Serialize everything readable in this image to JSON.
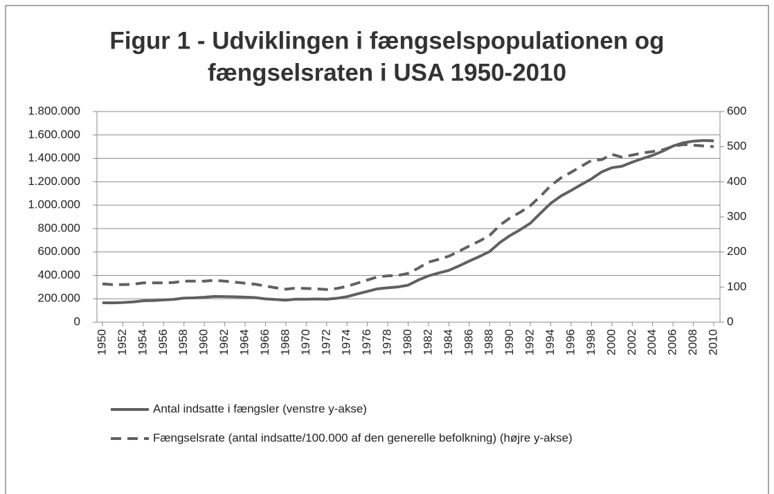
{
  "chart_data": {
    "type": "line",
    "title": [
      "Figur 1 - Udviklingen i fængselspopulationen og",
      "fængselsraten i USA 1950-2010"
    ],
    "x": [
      1950,
      1951,
      1952,
      1953,
      1954,
      1955,
      1956,
      1957,
      1958,
      1959,
      1960,
      1961,
      1962,
      1963,
      1964,
      1965,
      1966,
      1967,
      1968,
      1969,
      1970,
      1971,
      1972,
      1973,
      1974,
      1975,
      1976,
      1977,
      1978,
      1979,
      1980,
      1981,
      1982,
      1983,
      1984,
      1985,
      1986,
      1987,
      1988,
      1989,
      1990,
      1991,
      1992,
      1993,
      1994,
      1995,
      1996,
      1997,
      1998,
      1999,
      2000,
      2001,
      2002,
      2003,
      2004,
      2005,
      2006,
      2007,
      2008,
      2009,
      2010
    ],
    "xlim": [
      1950,
      2010
    ],
    "xticks": [
      1950,
      1952,
      1954,
      1956,
      1958,
      1960,
      1962,
      1964,
      1966,
      1968,
      1970,
      1972,
      1974,
      1976,
      1978,
      1980,
      1982,
      1984,
      1986,
      1988,
      1990,
      1992,
      1994,
      1996,
      1998,
      2000,
      2002,
      2004,
      2006,
      2008,
      2010
    ],
    "series": [
      {
        "name": "Antal indsatte i fængsler (venstre y-akse)",
        "color": "#606060",
        "dash": false,
        "axis": "y",
        "values": [
          166000,
          165000,
          168000,
          173000,
          183000,
          185000,
          190000,
          195000,
          206000,
          208000,
          213000,
          220000,
          218000,
          217000,
          214000,
          210000,
          199000,
          194000,
          188000,
          197000,
          196000,
          198000,
          196000,
          204000,
          218000,
          241000,
          263000,
          285000,
          294000,
          301000,
          316000,
          360000,
          396000,
          420000,
          443000,
          481000,
          522000,
          561000,
          604000,
          680000,
          740000,
          790000,
          846000,
          932000,
          1016000,
          1078000,
          1126000,
          1176000,
          1225000,
          1284000,
          1320000,
          1333000,
          1368000,
          1398000,
          1426000,
          1462000,
          1505000,
          1533000,
          1547000,
          1553000,
          1550000
        ]
      },
      {
        "name": "Fængselsrate (antal indsatte/100.000 af den generelle befolkning) (højre y-akse)",
        "color": "#606060",
        "dash": true,
        "axis": "y2",
        "values": [
          109,
          107,
          107,
          108,
          112,
          112,
          112,
          113,
          117,
          117,
          117,
          119,
          117,
          114,
          111,
          108,
          103,
          98,
          94,
          97,
          96,
          95,
          93,
          96,
          102,
          111,
          120,
          129,
          132,
          133,
          139,
          154,
          171,
          179,
          188,
          202,
          217,
          231,
          247,
          276,
          297,
          313,
          332,
          359,
          389,
          411,
          427,
          444,
          461,
          463,
          478,
          470,
          476,
          482,
          486,
          491,
          501,
          506,
          504,
          502,
          500
        ]
      }
    ],
    "ylim": [
      0,
      1800000
    ],
    "yticks": [
      0,
      {
        "value": 200000,
        "label": "200.000"
      },
      {
        "value": 400000,
        "label": "400.000"
      },
      {
        "value": 600000,
        "label": "600.000"
      },
      {
        "value": 800000,
        "label": "800.000"
      },
      {
        "value": 1000000,
        "label": "1.000.000"
      },
      {
        "value": 1200000,
        "label": "1.200.000"
      },
      {
        "value": 1400000,
        "label": "1.400.000"
      },
      {
        "value": 1600000,
        "label": "1.600.000"
      },
      {
        "value": 1800000,
        "label": "1.800.000"
      }
    ],
    "y2lim": [
      0,
      600
    ],
    "y2ticks": [
      0,
      100,
      200,
      300,
      400,
      500,
      600
    ],
    "grid": true,
    "legend": "bottom"
  }
}
